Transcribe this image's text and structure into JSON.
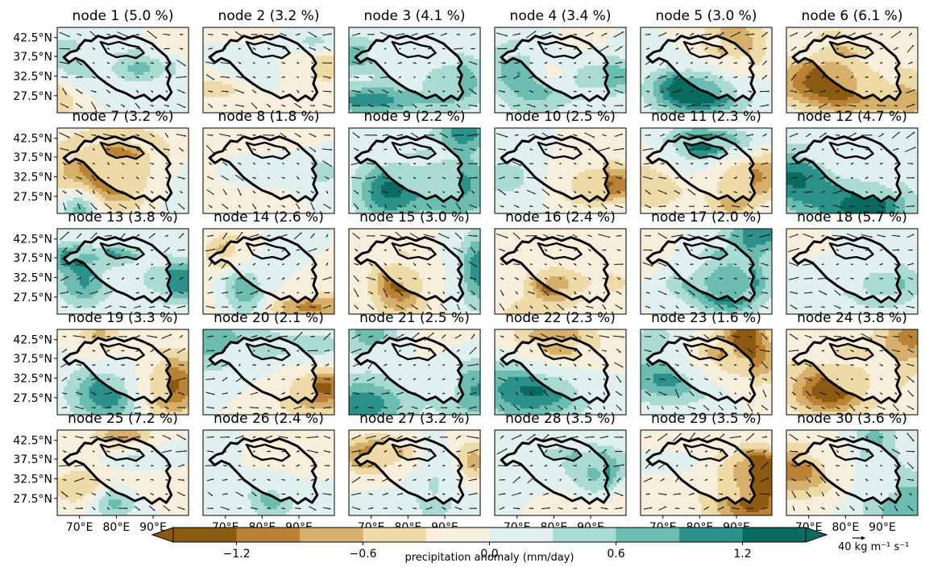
{
  "chart_data": {
    "type": "heatmap",
    "description_units": "precipitation anomaly (mm/day)",
    "panels": [
      {
        "node": 1,
        "pct": 5.0,
        "title": "node 1 (5.0 %)"
      },
      {
        "node": 2,
        "pct": 3.2,
        "title": "node 2 (3.2 %)"
      },
      {
        "node": 3,
        "pct": 4.1,
        "title": "node 3 (4.1 %)"
      },
      {
        "node": 4,
        "pct": 3.4,
        "title": "node 4 (3.4 %)"
      },
      {
        "node": 5,
        "pct": 3.0,
        "title": "node 5 (3.0 %)"
      },
      {
        "node": 6,
        "pct": 6.1,
        "title": "node 6 (6.1 %)"
      },
      {
        "node": 7,
        "pct": 3.2,
        "title": "node 7 (3.2 %)"
      },
      {
        "node": 8,
        "pct": 1.8,
        "title": "node 8 (1.8 %)"
      },
      {
        "node": 9,
        "pct": 2.2,
        "title": "node 9 (2.2 %)"
      },
      {
        "node": 10,
        "pct": 2.5,
        "title": "node 10 (2.5 %)"
      },
      {
        "node": 11,
        "pct": 2.3,
        "title": "node 11 (2.3 %)"
      },
      {
        "node": 12,
        "pct": 4.7,
        "title": "node 12 (4.7 %)"
      },
      {
        "node": 13,
        "pct": 3.8,
        "title": "node 13 (3.8 %)"
      },
      {
        "node": 14,
        "pct": 2.6,
        "title": "node 14 (2.6 %)"
      },
      {
        "node": 15,
        "pct": 3.0,
        "title": "node 15 (3.0 %)"
      },
      {
        "node": 16,
        "pct": 2.4,
        "title": "node 16 (2.4 %)"
      },
      {
        "node": 17,
        "pct": 2.0,
        "title": "node 17 (2.0 %)"
      },
      {
        "node": 18,
        "pct": 5.7,
        "title": "node 18 (5.7 %)"
      },
      {
        "node": 19,
        "pct": 3.3,
        "title": "node 19 (3.3 %)"
      },
      {
        "node": 20,
        "pct": 2.1,
        "title": "node 20 (2.1 %)"
      },
      {
        "node": 21,
        "pct": 2.5,
        "title": "node 21 (2.5 %)"
      },
      {
        "node": 22,
        "pct": 2.3,
        "title": "node 22 (2.3 %)"
      },
      {
        "node": 23,
        "pct": 1.6,
        "title": "node 23 (1.6 %)"
      },
      {
        "node": 24,
        "pct": 3.8,
        "title": "node 24 (3.8 %)"
      },
      {
        "node": 25,
        "pct": 7.2,
        "title": "node 25 (7.2 %)"
      },
      {
        "node": 26,
        "pct": 2.4,
        "title": "node 26 (2.4 %)"
      },
      {
        "node": 27,
        "pct": 3.2,
        "title": "node 27 (3.2 %)"
      },
      {
        "node": 28,
        "pct": 3.5,
        "title": "node 28 (3.5 %)"
      },
      {
        "node": 29,
        "pct": 3.5,
        "title": "node 29 (3.5 %)"
      },
      {
        "node": 30,
        "pct": 3.6,
        "title": "node 30 (3.6 %)"
      }
    ],
    "ytick_labels": [
      "42.5°N",
      "37.5°N",
      "32.5°N",
      "27.5°N"
    ],
    "xtick_labels": [
      "70°E",
      "80°E",
      "90°E"
    ],
    "colorbar": {
      "label": "precipitation anomaly (mm/day)",
      "vmin": -1.5,
      "vmax": 1.5,
      "levels": [
        -1.5,
        -1.2,
        -0.9,
        -0.6,
        -0.3,
        0.0,
        0.3,
        0.6,
        0.9,
        1.2,
        1.5
      ],
      "ticks": [
        -1.2,
        -0.6,
        0.0,
        0.6,
        1.2
      ],
      "tick_labels": [
        "−1.2",
        "−0.6",
        "0.0",
        "0.6",
        "1.2"
      ],
      "colors": [
        "#8c5a10",
        "#b98234",
        "#d6b06a",
        "#eedaa6",
        "#f7eedb",
        "#e0f0ef",
        "#aadbd3",
        "#6cbcb1",
        "#2b918a",
        "#0a6b60"
      ],
      "extend": "both"
    },
    "quiver_key": {
      "label": "40 kg m⁻¹ s⁻¹"
    },
    "grid": false
  },
  "colors": {
    "outline": "#000000",
    "arrow": "#111111"
  }
}
